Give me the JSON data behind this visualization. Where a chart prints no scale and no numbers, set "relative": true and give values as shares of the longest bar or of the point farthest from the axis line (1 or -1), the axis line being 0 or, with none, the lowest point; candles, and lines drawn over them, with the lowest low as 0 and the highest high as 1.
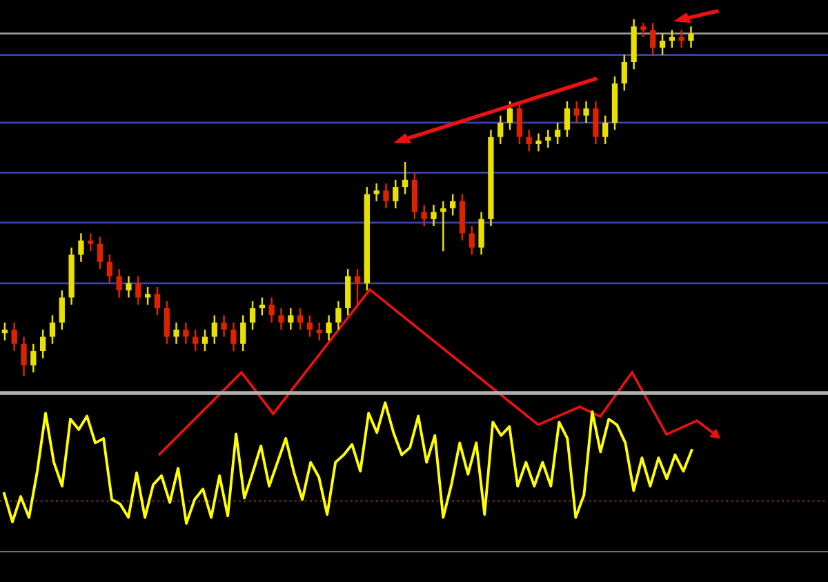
{
  "chart_data": [
    {
      "type": "candlestick",
      "relative": true,
      "categories": [
        null,
        null,
        null,
        null,
        null,
        null,
        null,
        null,
        null,
        null,
        null,
        null,
        null,
        null,
        null,
        null,
        null,
        null,
        null,
        null,
        null,
        null,
        null,
        null,
        null,
        null,
        null,
        null,
        null,
        null,
        null,
        null,
        null,
        null,
        null,
        null,
        null,
        null,
        null,
        null,
        null,
        null,
        null,
        null,
        null,
        null,
        null,
        null,
        null,
        null,
        null,
        null,
        null,
        null,
        null,
        null,
        null,
        null,
        null,
        null,
        null,
        null,
        null,
        null,
        null,
        null,
        null,
        null,
        null,
        null,
        null,
        null,
        null
      ],
      "ohlc": [
        [
          0.12,
          0.15,
          0.1,
          0.13
        ],
        [
          0.13,
          0.15,
          0.07,
          0.09
        ],
        [
          0.09,
          0.11,
          0.0,
          0.03
        ],
        [
          0.03,
          0.09,
          0.01,
          0.07
        ],
        [
          0.07,
          0.13,
          0.05,
          0.11
        ],
        [
          0.11,
          0.17,
          0.09,
          0.15
        ],
        [
          0.15,
          0.24,
          0.13,
          0.22
        ],
        [
          0.22,
          0.36,
          0.2,
          0.34
        ],
        [
          0.34,
          0.4,
          0.32,
          0.38
        ],
        [
          0.38,
          0.4,
          0.35,
          0.37
        ],
        [
          0.37,
          0.39,
          0.3,
          0.32
        ],
        [
          0.32,
          0.34,
          0.26,
          0.28
        ],
        [
          0.28,
          0.3,
          0.22,
          0.24
        ],
        [
          0.24,
          0.28,
          0.22,
          0.26
        ],
        [
          0.26,
          0.28,
          0.2,
          0.22
        ],
        [
          0.22,
          0.25,
          0.2,
          0.23
        ],
        [
          0.23,
          0.25,
          0.17,
          0.19
        ],
        [
          0.19,
          0.21,
          0.09,
          0.11
        ],
        [
          0.11,
          0.15,
          0.09,
          0.13
        ],
        [
          0.13,
          0.15,
          0.09,
          0.11
        ],
        [
          0.11,
          0.13,
          0.07,
          0.09
        ],
        [
          0.09,
          0.13,
          0.07,
          0.11
        ],
        [
          0.11,
          0.17,
          0.09,
          0.15
        ],
        [
          0.15,
          0.17,
          0.11,
          0.13
        ],
        [
          0.13,
          0.15,
          0.07,
          0.09
        ],
        [
          0.09,
          0.17,
          0.07,
          0.15
        ],
        [
          0.15,
          0.21,
          0.13,
          0.19
        ],
        [
          0.19,
          0.22,
          0.17,
          0.2
        ],
        [
          0.2,
          0.22,
          0.15,
          0.17
        ],
        [
          0.17,
          0.19,
          0.13,
          0.15
        ],
        [
          0.15,
          0.19,
          0.13,
          0.17
        ],
        [
          0.17,
          0.19,
          0.13,
          0.15
        ],
        [
          0.15,
          0.17,
          0.11,
          0.13
        ],
        [
          0.13,
          0.15,
          0.1,
          0.12
        ],
        [
          0.12,
          0.17,
          0.1,
          0.15
        ],
        [
          0.15,
          0.21,
          0.13,
          0.19
        ],
        [
          0.19,
          0.3,
          0.17,
          0.28
        ],
        [
          0.28,
          0.3,
          0.2,
          0.26
        ],
        [
          0.26,
          0.53,
          0.24,
          0.51
        ],
        [
          0.51,
          0.54,
          0.49,
          0.52
        ],
        [
          0.52,
          0.54,
          0.47,
          0.49
        ],
        [
          0.49,
          0.55,
          0.47,
          0.53
        ],
        [
          0.53,
          0.6,
          0.51,
          0.55
        ],
        [
          0.55,
          0.57,
          0.44,
          0.46
        ],
        [
          0.46,
          0.48,
          0.42,
          0.44
        ],
        [
          0.44,
          0.48,
          0.42,
          0.46
        ],
        [
          0.46,
          0.49,
          0.35,
          0.47
        ],
        [
          0.47,
          0.51,
          0.45,
          0.49
        ],
        [
          0.49,
          0.51,
          0.38,
          0.4
        ],
        [
          0.4,
          0.42,
          0.34,
          0.36
        ],
        [
          0.36,
          0.46,
          0.34,
          0.44
        ],
        [
          0.44,
          0.69,
          0.42,
          0.67
        ],
        [
          0.67,
          0.73,
          0.65,
          0.71
        ],
        [
          0.71,
          0.77,
          0.69,
          0.75
        ],
        [
          0.75,
          0.77,
          0.65,
          0.67
        ],
        [
          0.67,
          0.69,
          0.63,
          0.65
        ],
        [
          0.65,
          0.68,
          0.63,
          0.66
        ],
        [
          0.66,
          0.69,
          0.64,
          0.67
        ],
        [
          0.67,
          0.71,
          0.65,
          0.69
        ],
        [
          0.69,
          0.77,
          0.67,
          0.75
        ],
        [
          0.75,
          0.77,
          0.71,
          0.73
        ],
        [
          0.73,
          0.77,
          0.71,
          0.75
        ],
        [
          0.75,
          0.77,
          0.65,
          0.67
        ],
        [
          0.67,
          0.73,
          0.65,
          0.71
        ],
        [
          0.71,
          0.84,
          0.69,
          0.82
        ],
        [
          0.82,
          0.9,
          0.8,
          0.88
        ],
        [
          0.88,
          1.0,
          0.86,
          0.98
        ],
        [
          0.98,
          0.99,
          0.95,
          0.97
        ],
        [
          0.97,
          0.99,
          0.9,
          0.92
        ],
        [
          0.92,
          0.96,
          0.9,
          0.94
        ],
        [
          0.94,
          0.97,
          0.92,
          0.95
        ],
        [
          0.95,
          0.97,
          0.92,
          0.94
        ],
        [
          0.94,
          0.98,
          0.92,
          0.96
        ]
      ],
      "colors": [
        "#e8e000",
        "#dd2200",
        "#dd2200",
        "#e8e000",
        "#e8e000",
        "#e8e000",
        "#e8e000",
        "#e8e000",
        "#e8e000",
        "#dd2200",
        "#dd2200",
        "#dd2200",
        "#dd2200",
        "#e8e000",
        "#dd2200",
        "#e8e000",
        "#dd2200",
        "#dd2200",
        "#e8e000",
        "#dd2200",
        "#dd2200",
        "#e8e000",
        "#e8e000",
        "#dd2200",
        "#dd2200",
        "#e8e000",
        "#e8e000",
        "#e8e000",
        "#dd2200",
        "#dd2200",
        "#e8e000",
        "#dd2200",
        "#dd2200",
        "#dd2200",
        "#e8e000",
        "#e8e000",
        "#e8e000",
        "#dd2200",
        "#e8e000",
        "#e8e000",
        "#dd2200",
        "#e8e000",
        "#e8e000",
        "#dd2200",
        "#dd2200",
        "#e8e000",
        "#e8e000",
        "#e8e000",
        "#dd2200",
        "#dd2200",
        "#e8e000",
        "#e8e000",
        "#e8e000",
        "#e8e000",
        "#dd2200",
        "#dd2200",
        "#e8e000",
        "#e8e000",
        "#e8e000",
        "#e8e000",
        "#dd2200",
        "#e8e000",
        "#dd2200",
        "#e8e000",
        "#e8e000",
        "#e8e000",
        "#e8e000",
        "#dd2200",
        "#dd2200",
        "#e8e000",
        "#e8e000",
        "#dd2200",
        "#e8e000"
      ],
      "ref_lines": [
        {
          "axis": "y",
          "value": 0.96,
          "color": "#9a9a9a"
        },
        {
          "axis": "y",
          "value": 0.9,
          "color": "#3a44a8"
        },
        {
          "axis": "y",
          "value": 0.71,
          "color": "#3a44a8"
        },
        {
          "axis": "y",
          "value": 0.57,
          "color": "#3a44a8"
        },
        {
          "axis": "y",
          "value": 0.43,
          "color": "#3a44a8"
        },
        {
          "axis": "y",
          "value": 0.26,
          "color": "#3a44a8"
        }
      ]
    },
    {
      "type": "line",
      "relative": true,
      "categories": [
        null,
        null,
        null,
        null,
        null,
        null,
        null,
        null,
        null,
        null,
        null,
        null,
        null,
        null,
        null,
        null,
        null,
        null,
        null,
        null,
        null,
        null,
        null,
        null,
        null,
        null,
        null,
        null,
        null,
        null,
        null,
        null,
        null,
        null,
        null,
        null,
        null,
        null,
        null,
        null,
        null,
        null,
        null,
        null,
        null,
        null,
        null,
        null,
        null,
        null,
        null,
        null,
        null,
        null,
        null,
        null,
        null,
        null,
        null,
        null,
        null,
        null,
        null,
        null,
        null,
        null,
        null,
        null,
        null,
        null,
        null,
        null,
        null,
        null,
        null,
        null,
        null,
        null,
        null,
        null,
        null,
        null,
        null,
        null
      ],
      "series": [
        {
          "color": "#ffff00",
          "values": [
            0.39,
            0.2,
            0.37,
            0.23,
            0.54,
            0.93,
            0.6,
            0.44,
            0.89,
            0.82,
            0.91,
            0.73,
            0.76,
            0.35,
            0.32,
            0.23,
            0.53,
            0.23,
            0.45,
            0.51,
            0.33,
            0.56,
            0.19,
            0.35,
            0.42,
            0.23,
            0.51,
            0.24,
            0.79,
            0.36,
            0.53,
            0.71,
            0.44,
            0.6,
            0.76,
            0.53,
            0.35,
            0.6,
            0.5,
            0.25,
            0.6,
            0.65,
            0.72,
            0.54,
            0.93,
            0.8,
            1.0,
            0.8,
            0.65,
            0.7,
            0.91,
            0.6,
            0.78,
            0.23,
            0.45,
            0.73,
            0.52,
            0.73,
            0.25,
            0.87,
            0.78,
            0.84,
            0.44,
            0.6,
            0.44,
            0.6,
            0.44,
            0.87,
            0.76,
            0.23,
            0.38,
            0.94,
            0.67,
            0.89,
            0.85,
            0.73,
            0.41,
            0.63,
            0.44,
            0.63,
            0.49,
            0.65,
            0.54,
            0.68
          ]
        }
      ],
      "ref_lines": [
        {
          "axis": "y",
          "value": 0.34,
          "color": "#662233",
          "line_style": "dotted"
        }
      ]
    }
  ]
}
